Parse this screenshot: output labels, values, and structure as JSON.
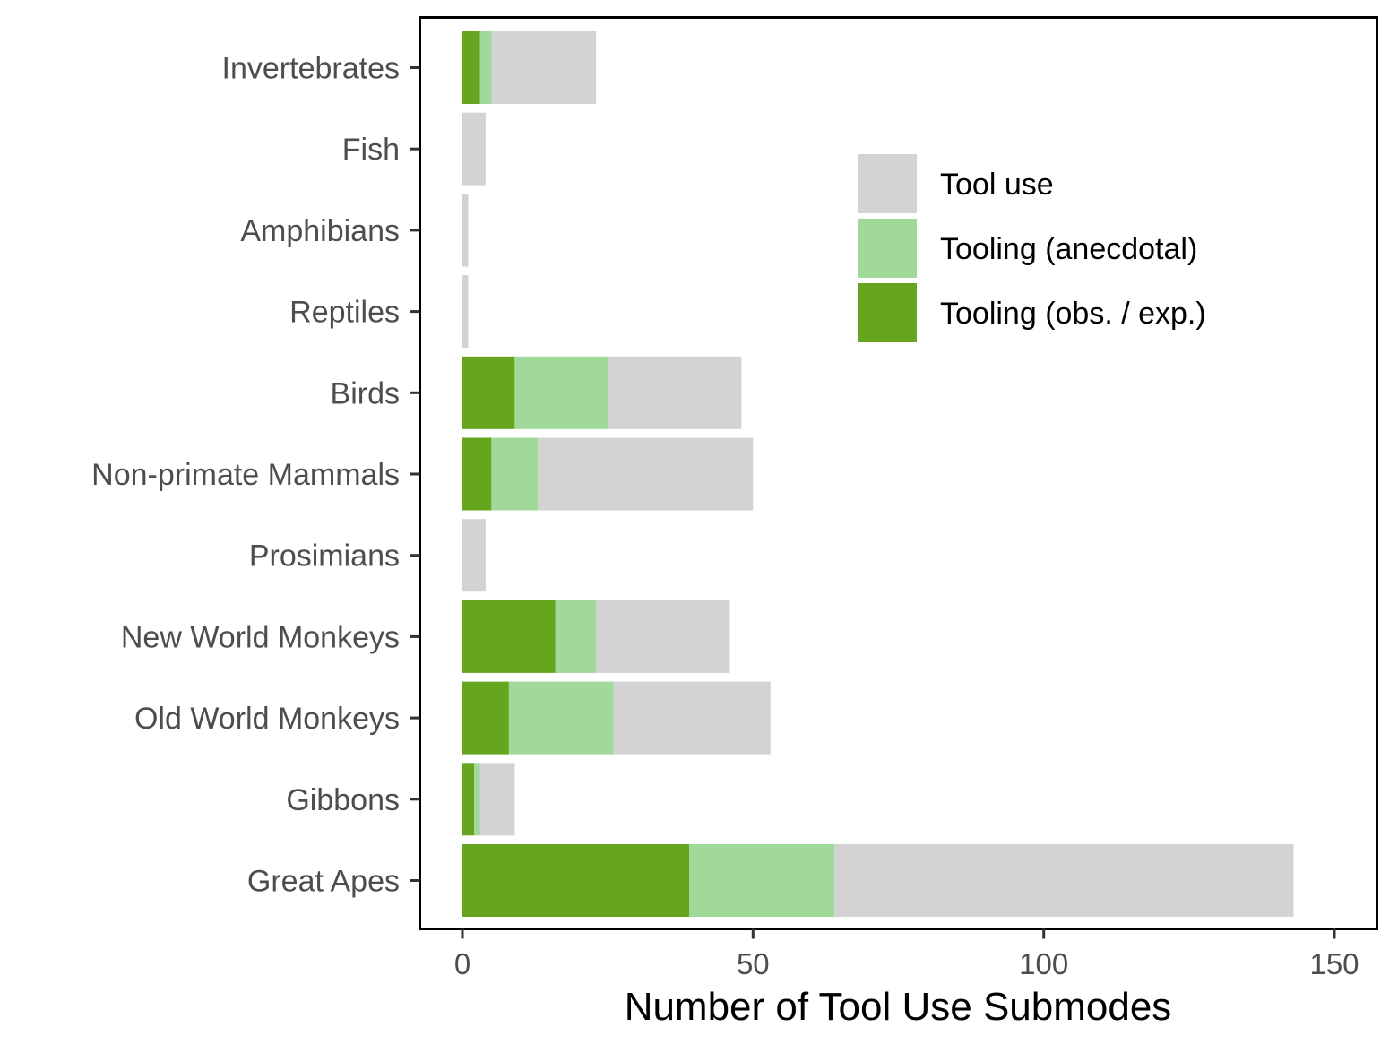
{
  "chart_data": {
    "type": "bar",
    "orientation": "horizontal",
    "stacked": true,
    "title": "",
    "xlabel": "Number of Tool Use Submodes",
    "ylabel": "",
    "xlim": [
      0,
      150
    ],
    "x_ticks": [
      0,
      50,
      100,
      150
    ],
    "grid": false,
    "legend_position": "top-right",
    "categories": [
      "Invertebrates",
      "Fish",
      "Amphibians",
      "Reptiles",
      "Birds",
      "Non-primate Mammals",
      "Prosimians",
      "New World Monkeys",
      "Old World Monkeys",
      "Gibbons",
      "Great Apes"
    ],
    "series": [
      {
        "name": "Tooling (obs. / exp.)",
        "color": "#66a61e",
        "values": [
          3,
          0,
          0,
          0,
          9,
          5,
          0,
          16,
          8,
          2,
          39
        ]
      },
      {
        "name": "Tooling (anecdotal)",
        "color": "#a1d99b",
        "values": [
          2,
          0,
          0,
          0,
          16,
          8,
          0,
          7,
          18,
          1,
          25
        ]
      },
      {
        "name": "Tool use",
        "color": "#d3d3d3",
        "values": [
          18,
          4,
          1,
          1,
          23,
          37,
          4,
          23,
          27,
          6,
          79
        ]
      }
    ],
    "legend_order": [
      "Tool use",
      "Tooling (anecdotal)",
      "Tooling (obs. / exp.)"
    ]
  }
}
